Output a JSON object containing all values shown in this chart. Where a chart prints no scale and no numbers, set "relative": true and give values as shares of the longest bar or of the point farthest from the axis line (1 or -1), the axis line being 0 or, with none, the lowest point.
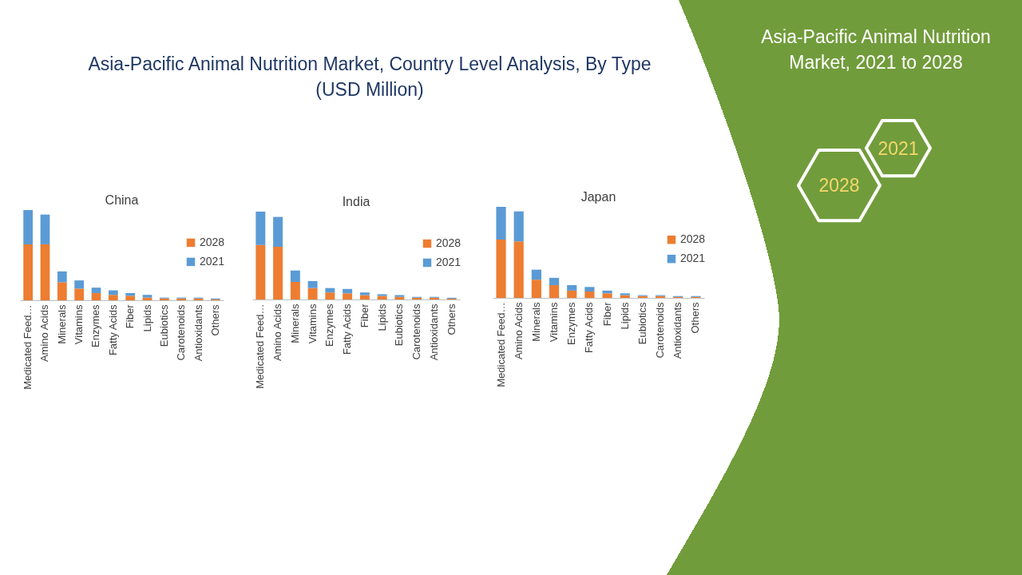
{
  "chart_data": [
    {
      "type": "other",
      "title": "Asia-Pacific Animal Nutrition Market, Country Level Analysis, By Type (USD Million)"
    },
    {
      "type": "bar",
      "title": "China",
      "stacked": true,
      "relative": true,
      "legend": "right",
      "categories": [
        "Medicated Feed…",
        "Amino Acids",
        "Minerals",
        "Vitamins",
        "Enzymes",
        "Fatty Acids",
        "Fiber",
        "Lipids",
        "Eubiotics",
        "Carotenoids",
        "Antioxidants",
        "Others"
      ],
      "series": [
        {
          "name": "2028",
          "color": "#ed7d31",
          "values": [
            0.62,
            0.62,
            0.2,
            0.13,
            0.08,
            0.06,
            0.05,
            0.03,
            0.02,
            0.02,
            0.02,
            0.01
          ]
        },
        {
          "name": "2021",
          "color": "#5b9bd5",
          "values": [
            0.38,
            0.33,
            0.12,
            0.09,
            0.06,
            0.05,
            0.03,
            0.03,
            0.01,
            0.01,
            0.01,
            0.01
          ]
        }
      ]
    },
    {
      "type": "bar",
      "title": "India",
      "stacked": true,
      "relative": true,
      "legend": "right",
      "categories": [
        "Medicated Feed…",
        "Amino Acids",
        "Minerals",
        "Vitamins",
        "Enzymes",
        "Fatty Acids",
        "Fiber",
        "Lipids",
        "Eubiotics",
        "Carotenoids",
        "Antioxidants",
        "Others"
      ],
      "series": [
        {
          "name": "2028",
          "color": "#ed7d31",
          "values": [
            0.62,
            0.6,
            0.2,
            0.13,
            0.08,
            0.07,
            0.05,
            0.04,
            0.03,
            0.02,
            0.02,
            0.01
          ]
        },
        {
          "name": "2021",
          "color": "#5b9bd5",
          "values": [
            0.38,
            0.34,
            0.13,
            0.08,
            0.05,
            0.05,
            0.03,
            0.02,
            0.02,
            0.01,
            0.01,
            0.01
          ]
        }
      ]
    },
    {
      "type": "bar",
      "title": "Japan",
      "stacked": true,
      "relative": true,
      "legend": "right",
      "categories": [
        "Medicated Feed…",
        "Amino Acids",
        "Minerals",
        "Vitamins",
        "Enzymes",
        "Fatty Acids",
        "Fiber",
        "Lipids",
        "Eubiotics",
        "Carotenoids",
        "Antioxidants",
        "Others"
      ],
      "series": [
        {
          "name": "2028",
          "color": "#ed7d31",
          "values": [
            0.64,
            0.62,
            0.2,
            0.14,
            0.08,
            0.07,
            0.05,
            0.03,
            0.02,
            0.02,
            0.01,
            0.01
          ]
        },
        {
          "name": "2021",
          "color": "#5b9bd5",
          "values": [
            0.36,
            0.33,
            0.11,
            0.08,
            0.06,
            0.05,
            0.03,
            0.02,
            0.01,
            0.01,
            0.01,
            0.01
          ]
        }
      ]
    },
    {
      "type": "other",
      "title": "Asia-Pacific Animal Nutrition Market, 2021 to 2028",
      "annotations": [
        "2028",
        "2021"
      ]
    }
  ]
}
